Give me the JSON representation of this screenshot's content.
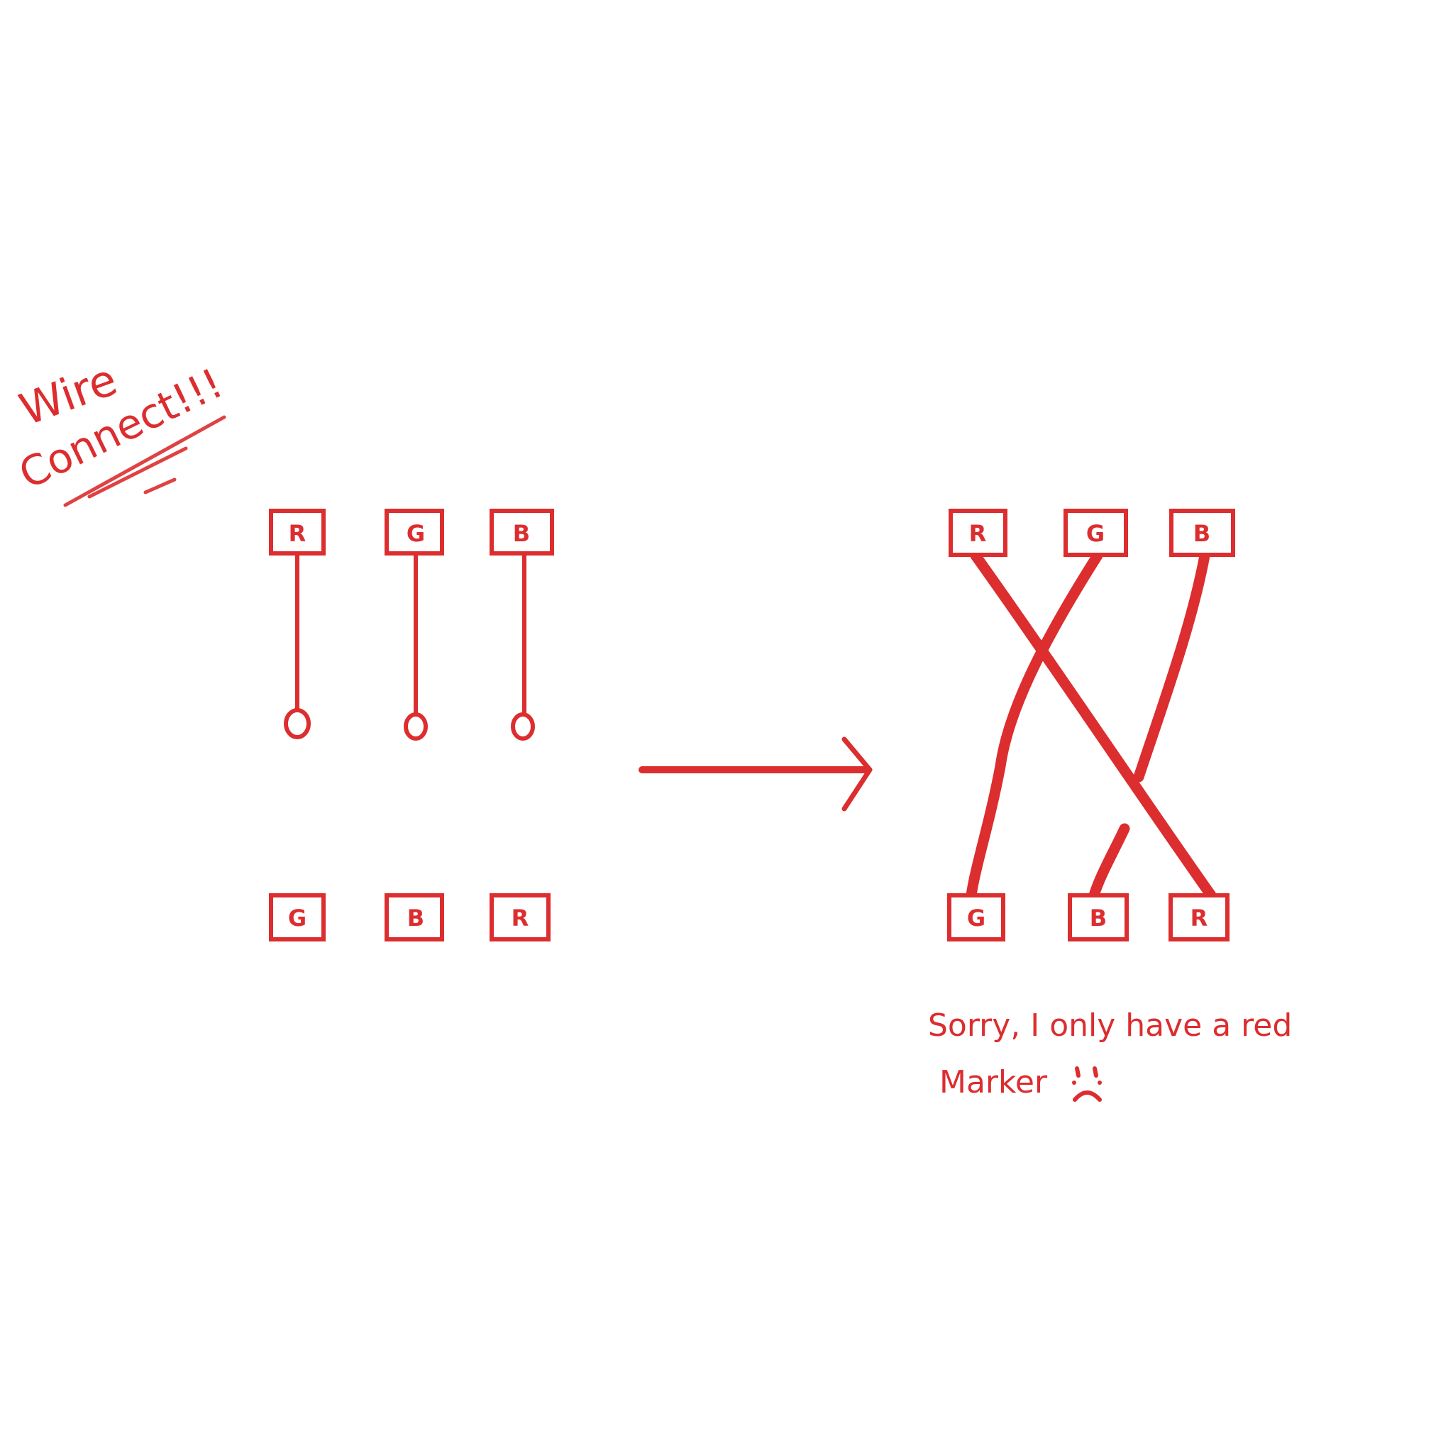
{
  "title": {
    "line1": "Wire",
    "line2": "Connect!!!"
  },
  "left_diagram": {
    "top_labels": [
      "R",
      "G",
      "B"
    ],
    "bottom_labels": [
      "G",
      "B",
      "R"
    ],
    "state": "unconnected"
  },
  "right_diagram": {
    "top_labels": [
      "R",
      "G",
      "B"
    ],
    "bottom_labels": [
      "G",
      "B",
      "R"
    ],
    "state": "connected"
  },
  "note": {
    "line1": "Sorry, I only have a red",
    "line2": "Marker"
  },
  "colors": {
    "marker": "#dc2d2f",
    "background": "#ffffff"
  },
  "icons": {
    "arrow": "right-arrow-icon",
    "sad_face": "sad-face-icon"
  }
}
